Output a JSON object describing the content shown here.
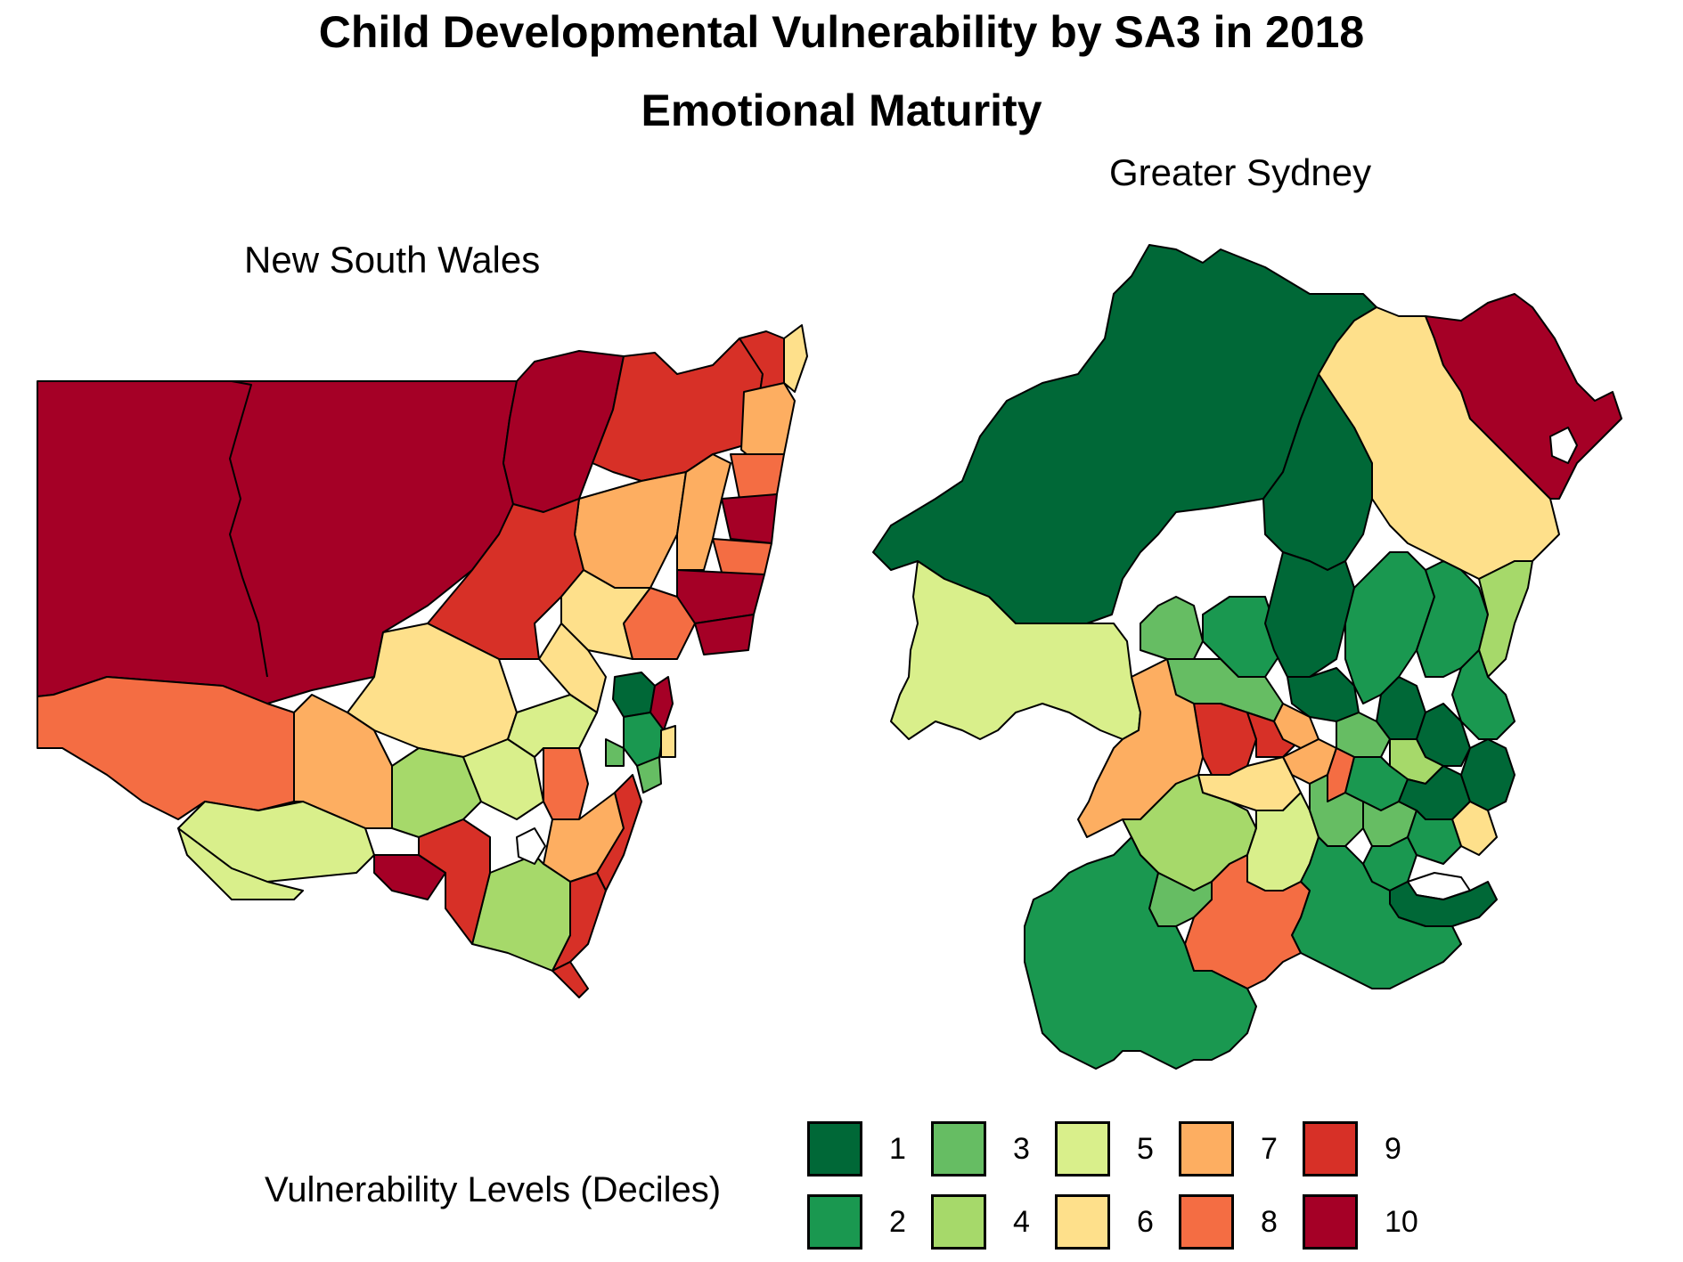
{
  "title_line1": "Child Developmental Vulnerability by SA3 in 2018",
  "title_line2": "Emotional Maturity",
  "panel_nsw": {
    "subtitle": "New South Wales"
  },
  "panel_sydney": {
    "subtitle": "Greater Sydney"
  },
  "legend": {
    "title": "Vulnerability Levels (Deciles)",
    "items": [
      {
        "label": "1",
        "color": "#006837"
      },
      {
        "label": "2",
        "color": "#1a9850"
      },
      {
        "label": "3",
        "color": "#66bd63"
      },
      {
        "label": "4",
        "color": "#a6d96a"
      },
      {
        "label": "5",
        "color": "#d9ef8b"
      },
      {
        "label": "6",
        "color": "#fee08b"
      },
      {
        "label": "7",
        "color": "#fdae61"
      },
      {
        "label": "8",
        "color": "#f46d43"
      },
      {
        "label": "9",
        "color": "#d73027"
      },
      {
        "label": "10",
        "color": "#a50026"
      }
    ]
  }
}
